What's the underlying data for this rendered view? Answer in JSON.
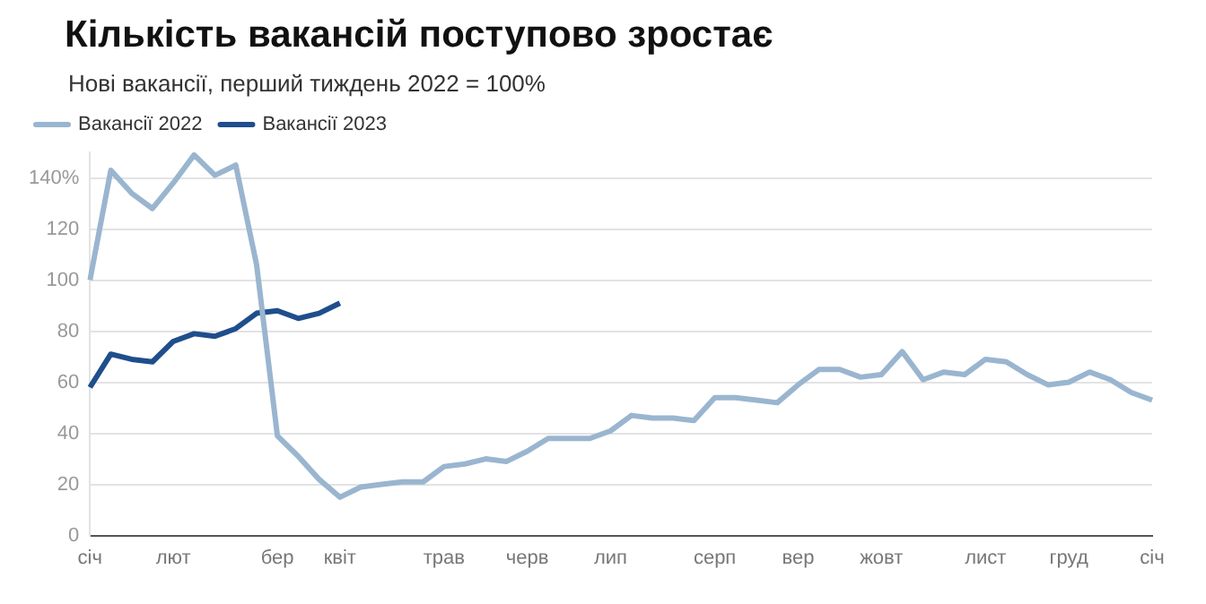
{
  "chart_data": {
    "type": "line",
    "title": "Кількість вакансій поступово зростає",
    "subtitle": "Нові вакансії, перший тиждень 2022 = 100%",
    "categories": [
      "січ",
      null,
      null,
      null,
      "лют",
      null,
      null,
      null,
      null,
      "бер",
      null,
      null,
      "квіт",
      null,
      null,
      null,
      null,
      "трав",
      null,
      null,
      null,
      "черв",
      null,
      null,
      null,
      "лип",
      null,
      null,
      null,
      null,
      "серп",
      null,
      null,
      null,
      "вер",
      null,
      null,
      null,
      "жовт",
      null,
      null,
      null,
      null,
      "лист",
      null,
      null,
      null,
      "груд",
      null,
      null,
      null,
      "січ"
    ],
    "series": [
      {
        "name": "Вакансії 2022",
        "color": "#9ab5cf",
        "values": [
          100,
          143,
          134,
          128,
          138,
          149,
          141,
          145,
          106,
          39,
          31,
          22,
          15,
          19,
          20,
          21,
          21,
          27,
          28,
          30,
          29,
          33,
          38,
          38,
          38,
          41,
          47,
          46,
          46,
          45,
          54,
          54,
          53,
          52,
          59,
          65,
          65,
          62,
          63,
          72,
          61,
          64,
          63,
          69,
          68,
          63,
          59,
          60,
          64,
          61,
          56,
          53
        ]
      },
      {
        "name": "Вакансії 2023",
        "color": "#1f4e8c",
        "values": [
          58,
          71,
          69,
          68,
          76,
          79,
          78,
          81,
          87,
          88,
          85,
          87,
          91,
          null,
          null,
          null,
          null,
          null,
          null,
          null,
          null,
          null,
          null,
          null,
          null,
          null,
          null,
          null,
          null,
          null,
          null,
          null,
          null,
          null,
          null,
          null,
          null,
          null,
          null,
          null,
          null,
          null,
          null,
          null,
          null,
          null,
          null,
          null,
          null,
          null,
          null,
          null
        ]
      }
    ],
    "ylim": [
      0,
      150
    ],
    "yticks": [
      0,
      20,
      40,
      60,
      80,
      100,
      120,
      {
        "value": 140,
        "label": "140%"
      }
    ],
    "grid": "y",
    "legend": "top left",
    "marker": "none",
    "line_style": "solid"
  }
}
